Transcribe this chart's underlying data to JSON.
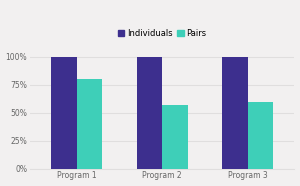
{
  "categories": [
    "Program 1",
    "Program 2",
    "Program 3"
  ],
  "individuals": [
    100,
    100,
    100
  ],
  "pairs": [
    80,
    57,
    60
  ],
  "individuals_color": "#3d2f8e",
  "pairs_color": "#3ecfb8",
  "background_color": "#f2f0f0",
  "yticks": [
    0,
    25,
    50,
    75,
    100
  ],
  "ytick_labels": [
    "0%",
    "25%",
    "50%",
    "75%",
    "100%"
  ],
  "legend_labels": [
    "Individuals",
    "Pairs"
  ],
  "bar_width": 0.3,
  "grid_color": "#e0dede",
  "tick_label_color": "#666666"
}
